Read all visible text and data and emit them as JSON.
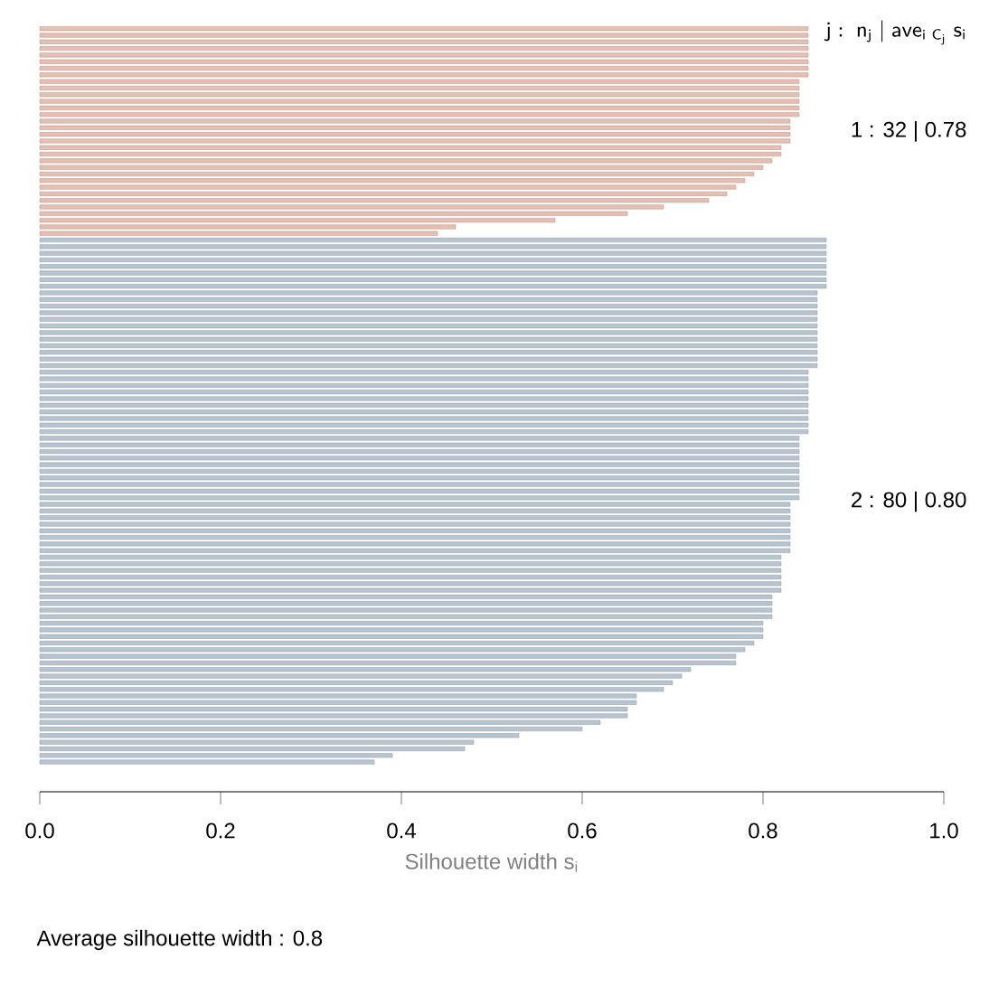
{
  "chart_data": {
    "type": "bar",
    "orientation": "horizontal",
    "categories": [
      null,
      null,
      null,
      null,
      null,
      null,
      null,
      null,
      null,
      null,
      null,
      null,
      null,
      null,
      null,
      null,
      null,
      null,
      null,
      null,
      null,
      null,
      null,
      null,
      null,
      null,
      null,
      null,
      null,
      null,
      null,
      null,
      null,
      null,
      null,
      null,
      null,
      null,
      null,
      null,
      null,
      null,
      null,
      null,
      null,
      null,
      null,
      null,
      null,
      null,
      null,
      null,
      null,
      null,
      null,
      null,
      null,
      null,
      null,
      null,
      null,
      null,
      null,
      null,
      null,
      null,
      null,
      null,
      null,
      null,
      null,
      null,
      null,
      null,
      null,
      null,
      null,
      null,
      null,
      null,
      null,
      null,
      null,
      null,
      null,
      null,
      null,
      null,
      null,
      null,
      null,
      null,
      null,
      null,
      null,
      null,
      null,
      null,
      null,
      null,
      null,
      null,
      null,
      null,
      null,
      null,
      null,
      null,
      null,
      null,
      null,
      null
    ],
    "values": [
      0.85,
      0.85,
      0.85,
      0.85,
      0.85,
      0.85,
      0.85,
      0.85,
      0.84,
      0.84,
      0.84,
      0.84,
      0.84,
      0.84,
      0.83,
      0.83,
      0.83,
      0.83,
      0.82,
      0.82,
      0.81,
      0.8,
      0.79,
      0.78,
      0.77,
      0.76,
      0.74,
      0.69,
      0.65,
      0.57,
      0.46,
      0.44,
      0.87,
      0.87,
      0.87,
      0.87,
      0.87,
      0.87,
      0.87,
      0.87,
      0.86,
      0.86,
      0.86,
      0.86,
      0.86,
      0.86,
      0.86,
      0.86,
      0.86,
      0.86,
      0.86,
      0.86,
      0.85,
      0.85,
      0.85,
      0.85,
      0.85,
      0.85,
      0.85,
      0.85,
      0.85,
      0.85,
      0.84,
      0.84,
      0.84,
      0.84,
      0.84,
      0.84,
      0.84,
      0.84,
      0.84,
      0.84,
      0.83,
      0.83,
      0.83,
      0.83,
      0.83,
      0.83,
      0.83,
      0.83,
      0.82,
      0.82,
      0.82,
      0.82,
      0.82,
      0.82,
      0.81,
      0.81,
      0.81,
      0.81,
      0.8,
      0.8,
      0.8,
      0.79,
      0.78,
      0.77,
      0.77,
      0.72,
      0.71,
      0.7,
      0.69,
      0.66,
      0.66,
      0.65,
      0.65,
      0.62,
      0.6,
      0.53,
      0.48,
      0.47,
      0.39,
      0.37
    ],
    "colors": [
      "#e6bfb2",
      "#e6bfb2",
      "#e6bfb2",
      "#e6bfb2",
      "#e6bfb2",
      "#e6bfb2",
      "#e6bfb2",
      "#e6bfb2",
      "#e6bfb2",
      "#e6bfb2",
      "#e6bfb2",
      "#e6bfb2",
      "#e6bfb2",
      "#e6bfb2",
      "#e6bfb2",
      "#e6bfb2",
      "#e6bfb2",
      "#e6bfb2",
      "#e6bfb2",
      "#e6bfb2",
      "#e6bfb2",
      "#e6bfb2",
      "#e6bfb2",
      "#e6bfb2",
      "#e6bfb2",
      "#e6bfb2",
      "#e6bfb2",
      "#e6bfb2",
      "#e6bfb2",
      "#e6bfb2",
      "#e6bfb2",
      "#e6bfb2",
      "#b8c5d1",
      "#b8c5d1",
      "#b8c5d1",
      "#b8c5d1",
      "#b8c5d1",
      "#b8c5d1",
      "#b8c5d1",
      "#b8c5d1",
      "#b8c5d1",
      "#b8c5d1",
      "#b8c5d1",
      "#b8c5d1",
      "#b8c5d1",
      "#b8c5d1",
      "#b8c5d1",
      "#b8c5d1",
      "#b8c5d1",
      "#b8c5d1",
      "#b8c5d1",
      "#b8c5d1",
      "#b8c5d1",
      "#b8c5d1",
      "#b8c5d1",
      "#b8c5d1",
      "#b8c5d1",
      "#b8c5d1",
      "#b8c5d1",
      "#b8c5d1",
      "#b8c5d1",
      "#b8c5d1",
      "#b8c5d1",
      "#b8c5d1",
      "#b8c5d1",
      "#b8c5d1",
      "#b8c5d1",
      "#b8c5d1",
      "#b8c5d1",
      "#b8c5d1",
      "#b8c5d1",
      "#b8c5d1",
      "#b8c5d1",
      "#b8c5d1",
      "#b8c5d1",
      "#b8c5d1",
      "#b8c5d1",
      "#b8c5d1",
      "#b8c5d1",
      "#b8c5d1",
      "#b8c5d1",
      "#b8c5d1",
      "#b8c5d1",
      "#b8c5d1",
      "#b8c5d1",
      "#b8c5d1",
      "#b8c5d1",
      "#b8c5d1",
      "#b8c5d1",
      "#b8c5d1",
      "#b8c5d1",
      "#b8c5d1",
      "#b8c5d1",
      "#b8c5d1",
      "#b8c5d1",
      "#b8c5d1",
      "#b8c5d1",
      "#b8c5d1",
      "#b8c5d1",
      "#b8c5d1",
      "#b8c5d1",
      "#b8c5d1",
      "#b8c5d1",
      "#b8c5d1",
      "#b8c5d1",
      "#b8c5d1",
      "#b8c5d1",
      "#b8c5d1",
      "#b8c5d1",
      "#b8c5d1",
      "#b8c5d1",
      "#b8c5d1"
    ],
    "xlim": [
      0,
      1
    ],
    "xticks": [
      {
        "value": 0,
        "label": "0.0"
      },
      {
        "value": 0.2,
        "label": "0.2"
      },
      {
        "value": 0.4,
        "label": "0.4"
      },
      {
        "value": 0.6,
        "label": "0.6"
      },
      {
        "value": 0.8,
        "label": "0.8"
      },
      {
        "value": 1,
        "label": "1.0"
      }
    ],
    "xlabel": "Silhouette width s$_{i}$",
    "annotations": [
      "\\mathsf{j :\\ n_{j}\\ |\\ ave_{i\\ C_{j}}\\ s_{i}}",
      "1 :  32  |  0.78",
      "2 :  80  |  0.80",
      "Average silhouette width :  0.8"
    ]
  }
}
